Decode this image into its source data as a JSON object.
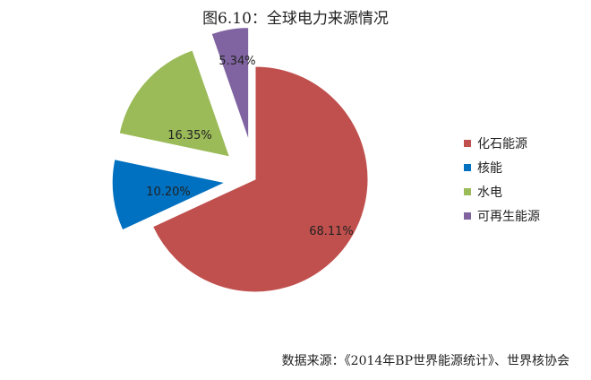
{
  "title": "图6.10：全球电力来源情况",
  "source": "数据来源：《2014年BP世界能源统计》、世界核协会",
  "chart_data": {
    "type": "pie",
    "title": "图6.10：全球电力来源情况",
    "legend_position": "right",
    "slices": [
      {
        "name": "化石能源",
        "value": 68.11,
        "label": "68.11%",
        "color": "#c0504d"
      },
      {
        "name": "核能",
        "value": 10.2,
        "label": "10.20%",
        "color": "#0070c0"
      },
      {
        "name": "水电",
        "value": 16.35,
        "label": "16.35%",
        "color": "#9bbb59"
      },
      {
        "name": "可再生能源",
        "value": 5.34,
        "label": "5.34%",
        "color": "#8064a2"
      }
    ]
  }
}
